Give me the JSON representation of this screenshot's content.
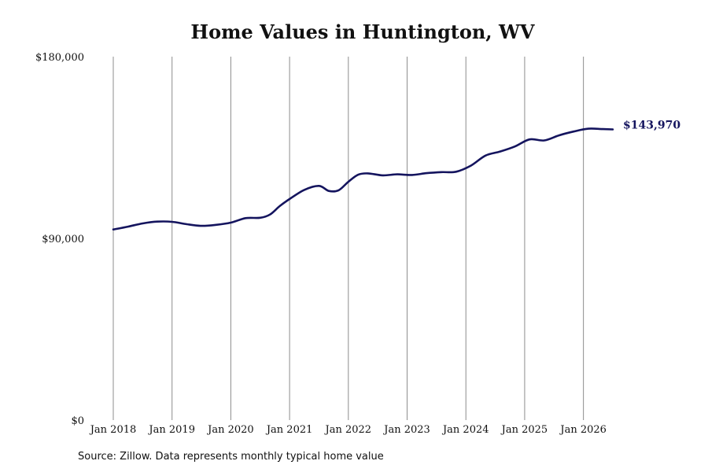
{
  "chart_data": {
    "type": "line",
    "title": "Home Values in Huntington, WV",
    "source_note": "Source: Zillow. Data represents monthly typical home value",
    "ylim": [
      0,
      180000
    ],
    "y_ticks": [
      {
        "value": 0,
        "label": "$0"
      },
      {
        "value": 90000,
        "label": "$90,000"
      },
      {
        "value": 180000,
        "label": "$180,000"
      }
    ],
    "x_ticks": [
      {
        "value": "2018-01",
        "label": "Jan 2018"
      },
      {
        "value": "2019-01",
        "label": "Jan 2019"
      },
      {
        "value": "2020-01",
        "label": "Jan 2020"
      },
      {
        "value": "2021-01",
        "label": "Jan 2021"
      },
      {
        "value": "2022-01",
        "label": "Jan 2022"
      },
      {
        "value": "2023-01",
        "label": "Jan 2023"
      },
      {
        "value": "2024-01",
        "label": "Jan 2024"
      },
      {
        "value": "2025-01",
        "label": "Jan 2025"
      },
      {
        "value": "2026-01",
        "label": "Jan 2026"
      }
    ],
    "xlim": [
      "2018-01",
      "2026-07"
    ],
    "grid": "vertical",
    "line_color": "#14145e",
    "end_label": "$143,970",
    "series": [
      {
        "values": [
          {
            "x": "2018-01",
            "y": 94400
          },
          {
            "x": "2018-04",
            "y": 95800
          },
          {
            "x": "2018-07",
            "y": 97400
          },
          {
            "x": "2018-10",
            "y": 98300
          },
          {
            "x": "2019-01",
            "y": 98200
          },
          {
            "x": "2019-04",
            "y": 97000
          },
          {
            "x": "2019-07",
            "y": 96200
          },
          {
            "x": "2019-10",
            "y": 96700
          },
          {
            "x": "2020-01",
            "y": 97800
          },
          {
            "x": "2020-04",
            "y": 100000
          },
          {
            "x": "2020-07",
            "y": 100200
          },
          {
            "x": "2020-09",
            "y": 101800
          },
          {
            "x": "2020-11",
            "y": 106000
          },
          {
            "x": "2021-01",
            "y": 109500
          },
          {
            "x": "2021-04",
            "y": 114000
          },
          {
            "x": "2021-07",
            "y": 116000
          },
          {
            "x": "2021-09",
            "y": 113500
          },
          {
            "x": "2021-11",
            "y": 113800
          },
          {
            "x": "2022-01",
            "y": 118000
          },
          {
            "x": "2022-03",
            "y": 121500
          },
          {
            "x": "2022-05",
            "y": 122200
          },
          {
            "x": "2022-08",
            "y": 121200
          },
          {
            "x": "2022-11",
            "y": 121700
          },
          {
            "x": "2023-02",
            "y": 121400
          },
          {
            "x": "2023-05",
            "y": 122300
          },
          {
            "x": "2023-08",
            "y": 122800
          },
          {
            "x": "2023-11",
            "y": 123000
          },
          {
            "x": "2024-02",
            "y": 126000
          },
          {
            "x": "2024-05",
            "y": 131000
          },
          {
            "x": "2024-08",
            "y": 133000
          },
          {
            "x": "2024-11",
            "y": 135500
          },
          {
            "x": "2025-02",
            "y": 139000
          },
          {
            "x": "2025-05",
            "y": 138500
          },
          {
            "x": "2025-08",
            "y": 141000
          },
          {
            "x": "2025-11",
            "y": 142900
          },
          {
            "x": "2026-02",
            "y": 144300
          },
          {
            "x": "2026-05",
            "y": 144100
          },
          {
            "x": "2026-07",
            "y": 143970
          }
        ]
      }
    ]
  }
}
